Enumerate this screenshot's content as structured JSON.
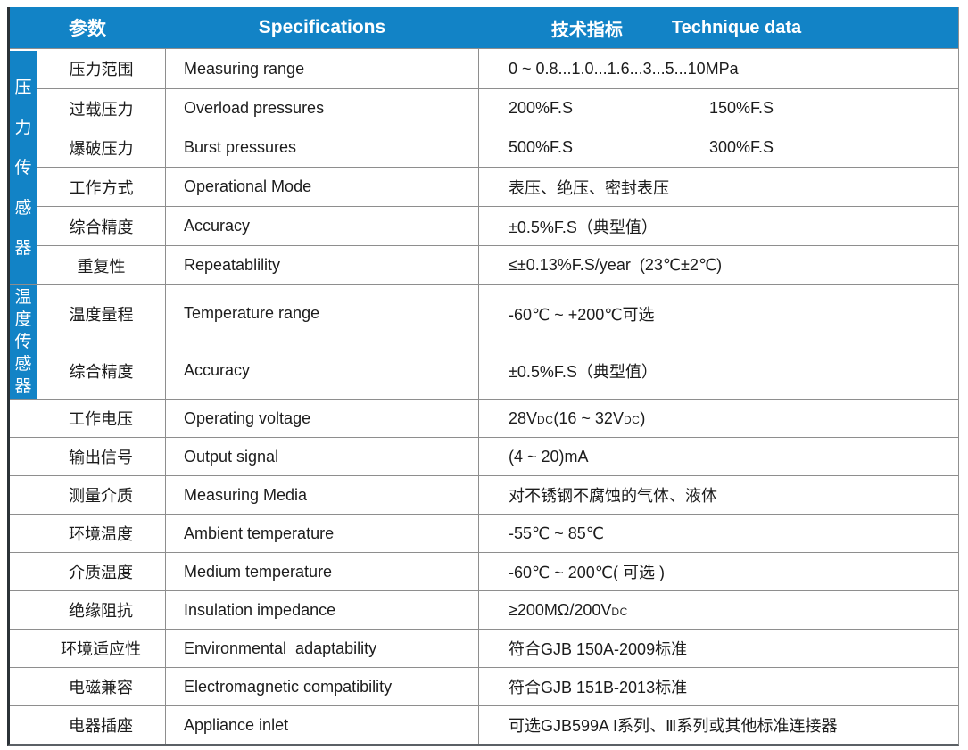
{
  "colors": {
    "accent": "#1283c6",
    "grid_line": "#8e8e8e",
    "header_text": "#ffffff",
    "body_text": "#1c1c1c"
  },
  "header": {
    "param": "参数",
    "spec": "Specifications",
    "tech_cn": "技术指标",
    "tech_en": "Technique data"
  },
  "sidebar": {
    "pressure_label": "压力传感器",
    "temperature_label": "温度传感器"
  },
  "rows": [
    {
      "param": "压力范围",
      "spec": "Measuring range",
      "value": "0 ~ 0.8...1.0...1.6...3...5...10MPa",
      "group": "pressure"
    },
    {
      "param": "过载压力",
      "spec": "Overload pressures",
      "value": "200%F.S",
      "value2": "150%F.S",
      "group": "pressure"
    },
    {
      "param": "爆破压力",
      "spec": "Burst pressures",
      "value": "500%F.S",
      "value2": "300%F.S",
      "group": "pressure"
    },
    {
      "param": "工作方式",
      "spec": "Operational Mode",
      "value": "表压、绝压、密封表压",
      "group": "pressure"
    },
    {
      "param": "综合精度",
      "spec": "Accuracy",
      "value": "±0.5%F.S（典型值）",
      "group": "pressure"
    },
    {
      "param": "重复性",
      "spec": "Repeatablility",
      "value": "≤±0.13%F.S/year  (23℃±2℃)",
      "group": "pressure"
    },
    {
      "param": "温度量程",
      "spec": "Temperature range",
      "value": "-60℃ ~ +200℃可选",
      "group": "temperature",
      "tall": true
    },
    {
      "param": "综合精度",
      "spec": "Accuracy",
      "value": "±0.5%F.S（典型值）",
      "group": "temperature",
      "tall": true
    },
    {
      "param": "工作电压",
      "spec": "Operating voltage",
      "value": "28VDC(16 ~ 32VDC)",
      "smallcaps": true
    },
    {
      "param": "输出信号",
      "spec": "Output signal",
      "value": "(4 ~ 20)mA"
    },
    {
      "param": "测量介质",
      "spec": "Measuring Media",
      "value": "对不锈钢不腐蚀的气体、液体"
    },
    {
      "param": "环境温度",
      "spec": "Ambient temperature",
      "value": "-55℃ ~ 85℃"
    },
    {
      "param": "介质温度",
      "spec": "Medium temperature",
      "value": "-60℃ ~ 200℃( 可选 )"
    },
    {
      "param": "绝缘阻抗",
      "spec": "Insulation impedance",
      "value": "≥200MΩ/200VDC",
      "smallcaps": true
    },
    {
      "param": "环境适应性",
      "spec": "Environmental  adaptability",
      "value": "符合GJB 150A-2009标准"
    },
    {
      "param": "电磁兼容",
      "spec": "Electromagnetic compatibility",
      "value": "符合GJB 151B-2013标准"
    },
    {
      "param": "电器插座",
      "spec": "Appliance inlet",
      "value": "可选GJB599A I系列、Ⅲ系列或其他标准连接器"
    }
  ]
}
